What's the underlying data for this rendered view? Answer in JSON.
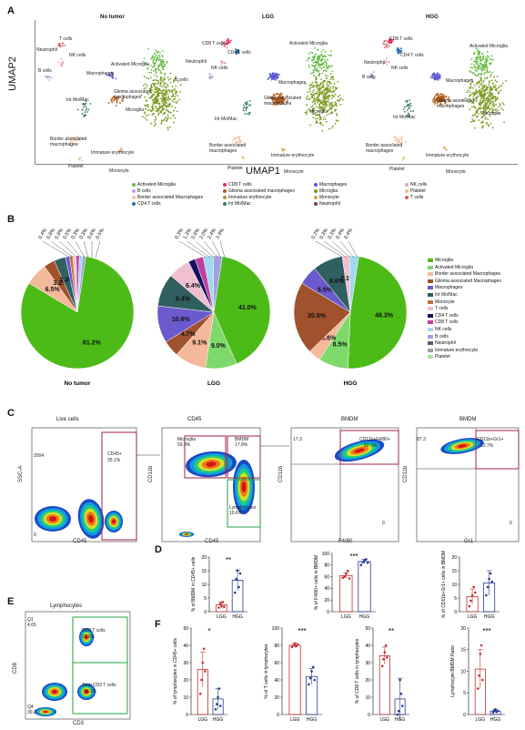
{
  "panels": {
    "A": "A",
    "B": "B",
    "C": "C",
    "D": "D",
    "E": "E",
    "F": "F"
  },
  "umap": {
    "ylabel": "UMAP2",
    "xlabel": "UMAP1",
    "titles": [
      "No tumor",
      "LGG",
      "HGG"
    ],
    "cluster_labels": {
      "t_cells": "T cells",
      "nk_cells": "NK cells",
      "neutrophil": "Neutrophil",
      "b_cells": "B cells",
      "cd8": "CD8 T cells",
      "cd4": "CD4 T cells",
      "activated_microglia": "Activated Microglia",
      "macrophages": "Macrophages",
      "glioma_mac": "Glioma associated macrophages",
      "int_momac": "Int Mo/Mac",
      "border_mac": "Border associated macrophages",
      "immature_ery": "Immature erythrocyte",
      "platelet": "Platelet",
      "monocyte": "Monocyte",
      "microglia": "Microglia"
    },
    "legend": [
      {
        "label": "Activated Microglia",
        "color": "#66bb44"
      },
      {
        "label": "B cells",
        "color": "#b8a0d8"
      },
      {
        "label": "Border associated Macrophages",
        "color": "#f2c6a0"
      },
      {
        "label": "CD4 T cells",
        "color": "#2a6fa8"
      },
      {
        "label": "CD8 T cells",
        "color": "#e0306a"
      },
      {
        "label": "Glioma associated macrophages",
        "color": "#b05a1a"
      },
      {
        "label": "Immature erythrocyte",
        "color": "#c08a3a"
      },
      {
        "label": "Int Mo/Mac",
        "color": "#3a7a6a"
      },
      {
        "label": "Macrophages",
        "color": "#5a5ad0"
      },
      {
        "label": "Microglia",
        "color": "#7a9a20"
      },
      {
        "label": "Monocyte",
        "color": "#d9a040"
      },
      {
        "label": "Neutrophil",
        "color": "#8a3a3a"
      },
      {
        "label": "NK cells",
        "color": "#e6a0c0"
      },
      {
        "label": "Platelet",
        "color": "#e6c080"
      },
      {
        "label": "T cells",
        "color": "#d06060"
      }
    ]
  },
  "pies": {
    "legend": [
      {
        "label": "Microglia",
        "color": "#4cbb17"
      },
      {
        "label": "Activated Microglia",
        "color": "#7ed96b"
      },
      {
        "label": "Border associated Macrophages",
        "color": "#f4b89a"
      },
      {
        "label": "Glioma associated Macrophages",
        "color": "#a0522d"
      },
      {
        "label": "Macrophages",
        "color": "#6a5acd"
      },
      {
        "label": "Int Mo/Mac",
        "color": "#2f5f5f"
      },
      {
        "label": "Monocyte",
        "color": "#c07038"
      },
      {
        "label": "T cells",
        "color": "#f0c0d0"
      },
      {
        "label": "CD4 T cells",
        "color": "#101060"
      },
      {
        "label": "CD8 T cells",
        "color": "#c040a0"
      },
      {
        "label": "NK cells",
        "color": "#a0d8f0"
      },
      {
        "label": "B cells",
        "color": "#a0a0e0"
      },
      {
        "label": "Neutrophil",
        "color": "#5a5a6a"
      },
      {
        "label": "Immature erythrocyte",
        "color": "#a0a0a0"
      },
      {
        "label": "Platelet",
        "color": "#b0e0a0"
      }
    ],
    "charts": [
      {
        "title": "No tumor",
        "slices": [
          {
            "v": 81.2,
            "c": "#4cbb17",
            "label": "81.2%"
          },
          {
            "v": 6.5,
            "c": "#f4b89a",
            "label": "6.5%"
          },
          {
            "v": 3.2,
            "c": "#a0522d",
            "label": "3.2%"
          },
          {
            "v": 3.3,
            "c": "#2f5f5f",
            "label": "3.3%"
          },
          {
            "v": 1.2,
            "c": "#6a5acd",
            "label": ""
          },
          {
            "v": 0.9,
            "c": "#c07038",
            "label": ""
          },
          {
            "v": 1.0,
            "c": "#f0c0d0",
            "label": ""
          },
          {
            "v": 0.9,
            "c": "#c040a0",
            "label": ""
          },
          {
            "v": 0.9,
            "c": "#a0d8f0",
            "label": ""
          },
          {
            "v": 0.9,
            "c": "#a0a0e0",
            "label": ""
          }
        ],
        "callouts": [
          "0.4%",
          "0.8%",
          "0.8%",
          "0.5%",
          "0.3%",
          "0.3%",
          "0.6%",
          "0.5%"
        ]
      },
      {
        "title": "LGG",
        "slices": [
          {
            "v": 41.0,
            "c": "#4cbb17",
            "label": "41.0%"
          },
          {
            "v": 9.0,
            "c": "#7ed96b",
            "label": "9.0%"
          },
          {
            "v": 9.1,
            "c": "#f4b89a",
            "label": "9.1%"
          },
          {
            "v": 4.7,
            "c": "#a0522d",
            "label": "4.7%"
          },
          {
            "v": 10.6,
            "c": "#6a5acd",
            "label": "10.6%"
          },
          {
            "v": 9.4,
            "c": "#2f5f5f",
            "label": "9.4%"
          },
          {
            "v": 6.4,
            "c": "#f0c0d0",
            "label": "6.4%"
          },
          {
            "v": 2.0,
            "c": "#101060",
            "label": ""
          },
          {
            "v": 2.4,
            "c": "#c040a0",
            "label": ""
          },
          {
            "v": 2.9,
            "c": "#a0d8f0",
            "label": ""
          },
          {
            "v": 2.5,
            "c": "#a0a0e0",
            "label": ""
          }
        ],
        "callouts": [
          "0.3%",
          "1.3%",
          "0.8%",
          "2.0%",
          "2.4%",
          "2.9%"
        ]
      },
      {
        "title": "HGG",
        "slices": [
          {
            "v": 48.3,
            "c": "#4cbb17",
            "label": "48.3%"
          },
          {
            "v": 8.5,
            "c": "#7ed96b",
            "label": "8.5%"
          },
          {
            "v": 3.6,
            "c": "#f4b89a",
            "label": "3.6%"
          },
          {
            "v": 20.8,
            "c": "#a0522d",
            "label": "20.8%"
          },
          {
            "v": 5.5,
            "c": "#6a5acd",
            "label": "5.5%"
          },
          {
            "v": 8.6,
            "c": "#2f5f5f",
            "label": "8.6%"
          },
          {
            "v": 2.1,
            "c": "#f0c0d0",
            "label": "2.1%"
          },
          {
            "v": 2.6,
            "c": "#a0d8f0",
            "label": ""
          }
        ],
        "callouts": [
          "0.2%",
          "0.3%",
          "0.3%",
          "0.4%",
          "0.4%"
        ]
      }
    ]
  },
  "flow": {
    "live_title": "Live cells",
    "ssc": "SSC-A",
    "cd45": "CD45",
    "cd45gate": "CD45+",
    "cd45pct": "25.1%",
    "cd45_title": "CD45",
    "cd11b": "CD11b",
    "microglia": "Microglia",
    "microglia_pct": "59.3%",
    "bmdm": "BMDM",
    "bmdm_pct": "17.8%",
    "lympho": "Lymphocytes",
    "lympho_pct": "10.6%",
    "bmdm_title": "BMDM",
    "f480": "F4/80",
    "f480gate": "CD11b+F4/80+",
    "f480pct": "82.7%",
    "q1a": "17.3",
    "q4a": "0",
    "gr1": "Gr1",
    "gr1gate": "CD11b+Gr1+",
    "gr1pct": "12.7%",
    "q1b": "87.3",
    "q4b": "0",
    "e_title": "Lymphocytes",
    "cd8": "CD8",
    "cd3": "CD3",
    "cd8gate": "CD8 T cells",
    "cd8pct": "18.6%",
    "totalcd3": "Total CD3 T cells",
    "totalpct": "56.1%",
    "eq1": "Q1",
    "eq1v": "4.65",
    "eq4": "Q4",
    "eq4v": "30.2",
    "ticks_top": "2004",
    "ticks_bot": "0"
  },
  "bars": {
    "groups": [
      "LGG",
      "HGG"
    ],
    "d": [
      {
        "ylabel": "% of BMDM in CD45+ cells",
        "sig": "**",
        "ymax": 20,
        "ticks": [
          "0",
          "5",
          "10",
          "15",
          "20"
        ],
        "means": [
          2.5,
          11.5
        ],
        "err": [
          1.2,
          3.8
        ],
        "pts": [
          [
            1.5,
            3.0,
            2.0,
            3.5,
            1.8
          ],
          [
            7,
            12,
            15,
            9,
            14
          ]
        ]
      },
      {
        "ylabel": "% of F4/80+ cells in BMDM",
        "sig": "***",
        "ymax": 100,
        "ticks": [
          "0",
          "20",
          "40",
          "60",
          "80",
          "100"
        ],
        "means": [
          62,
          86
        ],
        "err": [
          5,
          4
        ],
        "pts": [
          [
            58,
            60,
            65,
            70,
            57
          ],
          [
            80,
            85,
            88,
            90,
            84
          ]
        ]
      },
      {
        "ylabel": "% of CD11b+Gr1+ cells in BMDM",
        "sig": "",
        "ymax": 20,
        "ticks": [
          "0",
          "5",
          "10",
          "15",
          "20"
        ],
        "means": [
          5.5,
          10.5
        ],
        "err": [
          2.8,
          4.5
        ],
        "pts": [
          [
            2,
            4,
            6,
            9,
            7
          ],
          [
            6,
            9,
            12,
            14,
            11
          ]
        ]
      }
    ],
    "f": [
      {
        "ylabel": "% of lymphocytes in CD45+ cells",
        "sig": "*",
        "ymax": 50,
        "ticks": [
          "0",
          "10",
          "20",
          "30",
          "40",
          "50"
        ],
        "means": [
          26,
          9
        ],
        "err": [
          10,
          6
        ],
        "pts": [
          [
            12,
            20,
            30,
            38,
            25
          ],
          [
            3,
            6,
            10,
            15,
            5
          ]
        ]
      },
      {
        "ylabel": "% of T cells in lymphocytes",
        "sig": "***",
        "ymax": 100,
        "ticks": [
          "0",
          "20",
          "40",
          "60",
          "80",
          "100"
        ],
        "means": [
          80,
          44
        ],
        "err": [
          3,
          9
        ],
        "pts": [
          [
            78,
            80,
            82,
            79,
            81
          ],
          [
            35,
            42,
            50,
            55,
            40
          ]
        ]
      },
      {
        "ylabel": "% of CD8 T cells in lymphocytes",
        "sig": "**",
        "ymax": 50,
        "ticks": [
          "0",
          "10",
          "20",
          "30",
          "40",
          "50"
        ],
        "means": [
          34,
          9
        ],
        "err": [
          5,
          12
        ],
        "pts": [
          [
            28,
            32,
            36,
            40,
            33
          ],
          [
            0,
            2,
            20,
            12,
            5
          ]
        ]
      },
      {
        "ylabel": "Lymphocyte:BMDM Ratio",
        "sig": "***",
        "ymax": 20,
        "ticks": [
          "0",
          "5",
          "10",
          "15",
          "20"
        ],
        "means": [
          10.5,
          0.8
        ],
        "err": [
          4.5,
          0.4
        ],
        "pts": [
          [
            6,
            9,
            14,
            16,
            8
          ],
          [
            0.5,
            0.9,
            1.2,
            0.6,
            0.8
          ]
        ]
      }
    ]
  }
}
